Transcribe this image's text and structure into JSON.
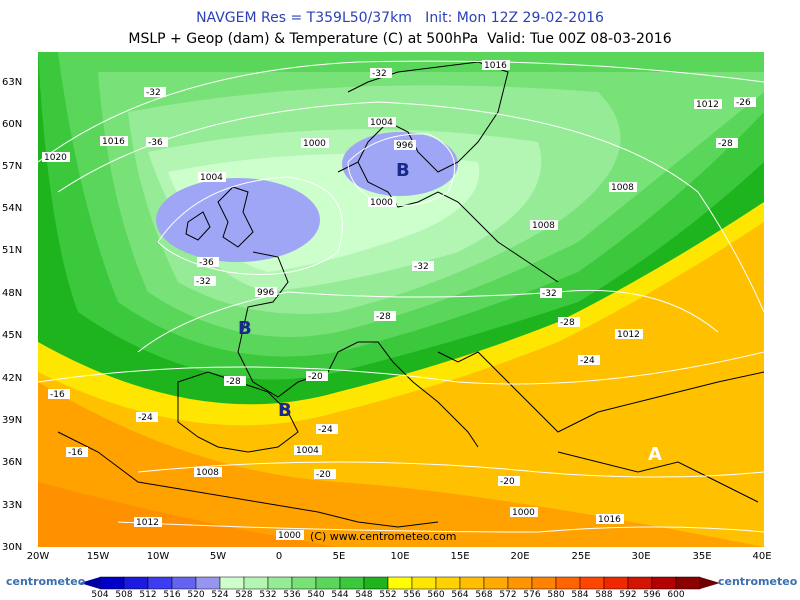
{
  "header": {
    "line1": "NAVGEM Res = T359L50/37km   Init: Mon 12Z 29-02-2016",
    "line2": "MSLP + Geop (dam) & Temperature (C) at 500hPa  Valid: Tue 00Z 08-03-2016"
  },
  "lat_labels": [
    "63N",
    "60N",
    "57N",
    "54N",
    "51N",
    "48N",
    "45N",
    "42N",
    "39N",
    "36N",
    "33N",
    "30N"
  ],
  "lon_labels": [
    "20W",
    "15W",
    "10W",
    "5W",
    "0",
    "5E",
    "10E",
    "15E",
    "20E",
    "25E",
    "30E",
    "35E",
    "40E"
  ],
  "pressure_labels": [
    "1016",
    "1012",
    "1020",
    "1016",
    "1004",
    "1000",
    "1004",
    "996",
    "1008",
    "1000",
    "1008",
    "996",
    "1012",
    "1000",
    "1004",
    "1008",
    "1012",
    "1016",
    "1000"
  ],
  "temp_labels": [
    "-32",
    "-32",
    "-36",
    "-26",
    "-28",
    "-36",
    "-32",
    "-32",
    "-32",
    "-28",
    "-28",
    "-24",
    "-24",
    "-20",
    "-28",
    "-24",
    "-16",
    "-16",
    "-20",
    "-20"
  ],
  "system_labels": [
    "B",
    "B",
    "B",
    "A"
  ],
  "copyright": "(C) www.centrometeo.com",
  "colorbar": {
    "values": [
      "504",
      "508",
      "512",
      "516",
      "520",
      "524",
      "528",
      "532",
      "536",
      "540",
      "544",
      "548",
      "552",
      "556",
      "560",
      "564",
      "568",
      "572",
      "576",
      "580",
      "584",
      "588",
      "592",
      "596",
      "600"
    ],
    "colors": [
      "#0000c8",
      "#1a1ae0",
      "#3c3cf0",
      "#6464f0",
      "#9696f0",
      "#ccffcc",
      "#b3f5b3",
      "#96eb96",
      "#78e178",
      "#5ad75a",
      "#3cc83c",
      "#1eb41e",
      "#ffff00",
      "#ffe600",
      "#ffd200",
      "#ffbe00",
      "#ffaa00",
      "#ff9600",
      "#ff8200",
      "#ff6400",
      "#ff4600",
      "#f02800",
      "#d21400",
      "#b40000",
      "#8c0000"
    ]
  },
  "logo_left": "centrometeo",
  "logo_right": "centrometeo"
}
